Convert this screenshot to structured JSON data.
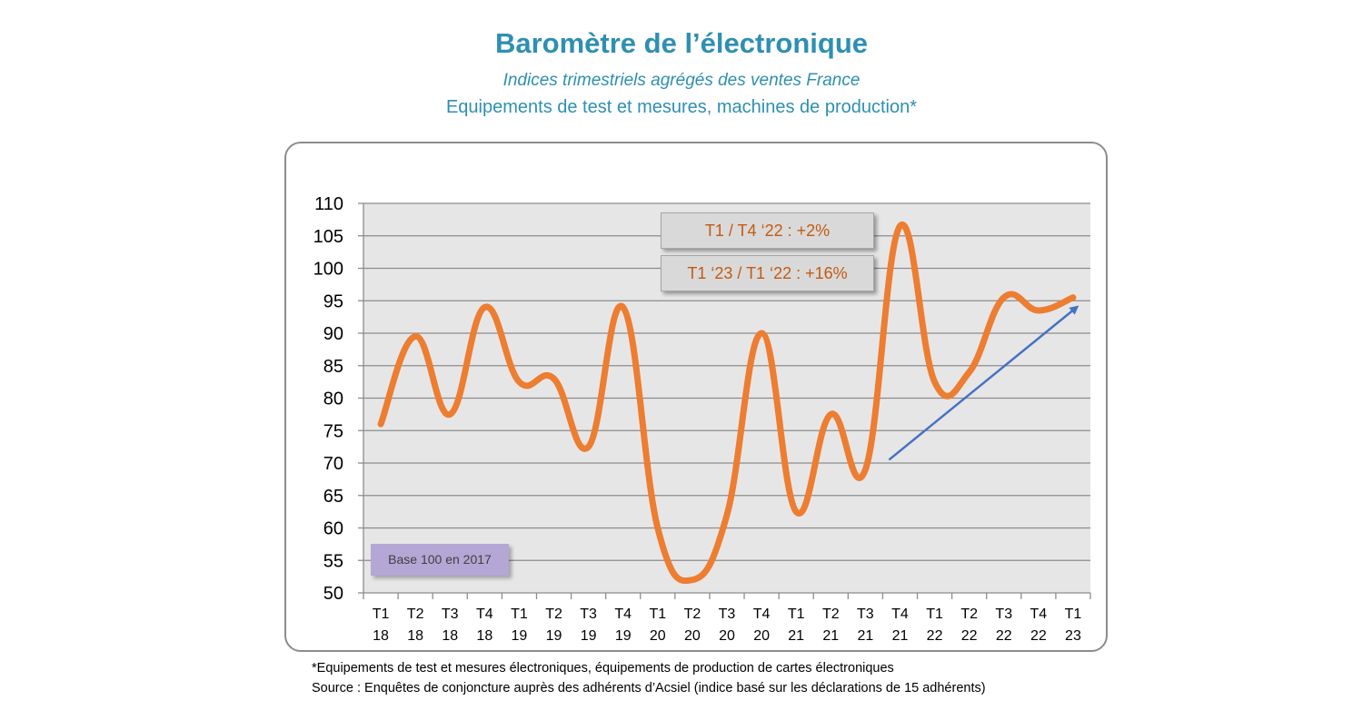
{
  "title": "Baromètre de l’électronique",
  "subtitle": "Indices trimestriels agrégés des ventes France",
  "subtitle2": "Equipements de test et mesures, machines de production*",
  "annotations": {
    "box1": "T1 / T4 ‘22 : +2%",
    "box2": "T1 ‘23 / T1 ‘22 : +16%",
    "base": "Base 100 en 2017"
  },
  "footnote": "*Equipements de test et mesures électroniques, équipements de production de cartes électroniques",
  "source": "Source : Enquêtes de conjoncture auprès des adhérents d’Acsiel (indice basé sur les déclarations de 15 adhérents)",
  "colors": {
    "title": "#2E8FB2",
    "line": "#ED7D31",
    "arrow": "#4472C4",
    "plot_bg": "#E7E6E6",
    "annotation_text": "#C55A11"
  },
  "chart_data": {
    "type": "line",
    "categories": [
      [
        "T1",
        "18"
      ],
      [
        "T2",
        "18"
      ],
      [
        "T3",
        "18"
      ],
      [
        "T4",
        "18"
      ],
      [
        "T1",
        "19"
      ],
      [
        "T2",
        "19"
      ],
      [
        "T3",
        "19"
      ],
      [
        "T4",
        "19"
      ],
      [
        "T1",
        "20"
      ],
      [
        "T2",
        "20"
      ],
      [
        "T3",
        "20"
      ],
      [
        "T4",
        "20"
      ],
      [
        "T1",
        "21"
      ],
      [
        "T2",
        "21"
      ],
      [
        "T3",
        "21"
      ],
      [
        "T4",
        "21"
      ],
      [
        "T1",
        "22"
      ],
      [
        "T2",
        "22"
      ],
      [
        "T3",
        "22"
      ],
      [
        "T4",
        "22"
      ],
      [
        "T1",
        "23"
      ]
    ],
    "series": [
      {
        "values": [
          76,
          89.5,
          77.5,
          94,
          82.5,
          83,
          72.5,
          94,
          60,
          52,
          62,
          90,
          62.5,
          77.5,
          69,
          106.5,
          82.5,
          84,
          95.5,
          93.5,
          95.5
        ]
      }
    ],
    "yticks": [
      50,
      55,
      60,
      65,
      70,
      75,
      80,
      85,
      90,
      95,
      100,
      105,
      110
    ],
    "ylim": [
      50,
      110
    ],
    "grid": true,
    "trend_arrow": {
      "from": {
        "x": "T3 21",
        "y": 70.5
      },
      "to": {
        "x": "T1 23",
        "y": 94
      }
    }
  }
}
